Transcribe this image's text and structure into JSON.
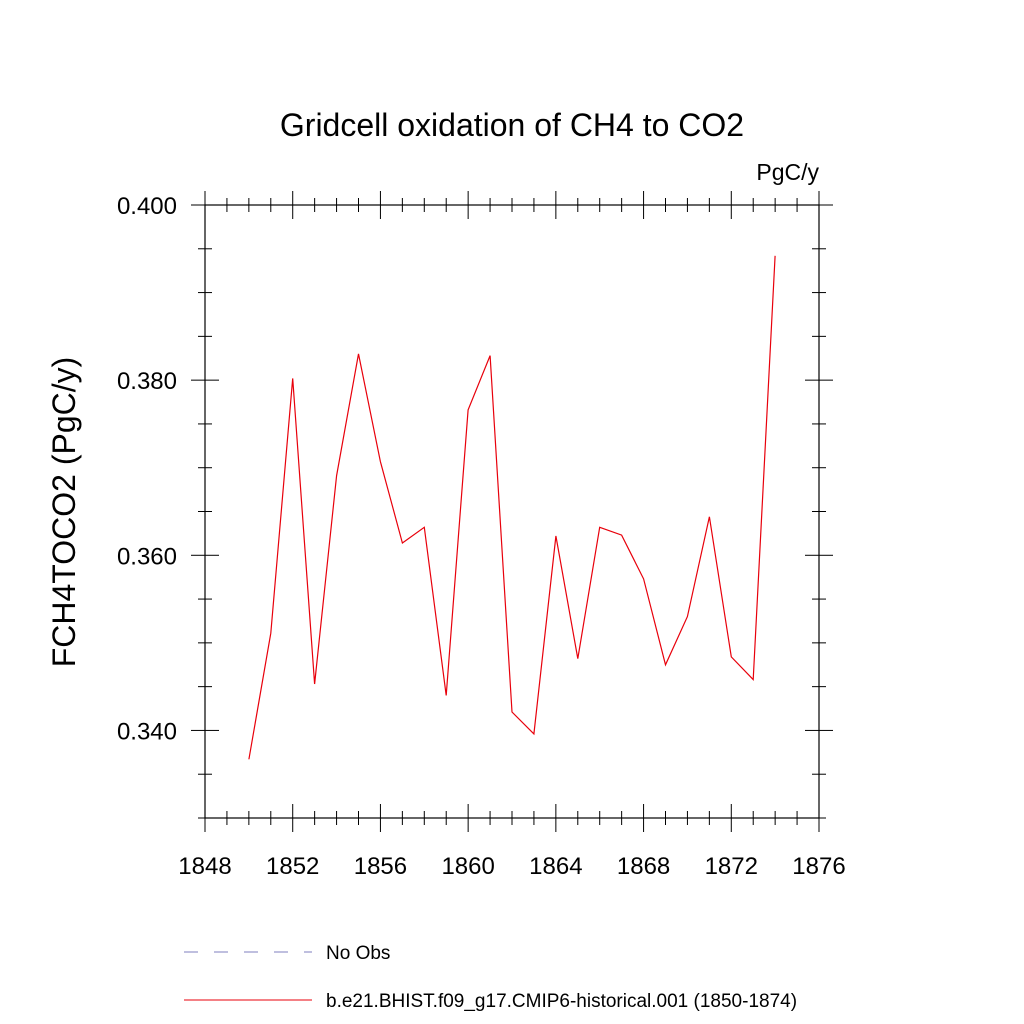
{
  "chart_data": {
    "type": "line",
    "title": "Gridcell oxidation of CH4 to CO2",
    "units": "PgC/y",
    "ylabel": "FCH4TOCO2  (PgC/y)",
    "xlabel": "",
    "xlim": [
      1848,
      1876
    ],
    "ylim": [
      0.33,
      0.4
    ],
    "x_ticks": [
      "1848",
      "1852",
      "1856",
      "1860",
      "1864",
      "1868",
      "1872",
      "1876"
    ],
    "y_ticks": [
      "0.340",
      "0.360",
      "0.380",
      "0.400"
    ],
    "grid": false,
    "legend_position": "bottom",
    "series": [
      {
        "name": "No Obs",
        "color": "#7f7fbf",
        "style": "dashed",
        "x": [],
        "values": []
      },
      {
        "name": "b.e21.BHIST.f09_g17.CMIP6-historical.001 (1850-1874)",
        "color": "#e8000b",
        "style": "solid",
        "x": [
          1850,
          1851,
          1852,
          1853,
          1854,
          1855,
          1856,
          1857,
          1858,
          1859,
          1860,
          1861,
          1862,
          1863,
          1864,
          1865,
          1866,
          1867,
          1868,
          1869,
          1870,
          1871,
          1872,
          1873,
          1874
        ],
        "values": [
          0.3367,
          0.3511,
          0.3802,
          0.3453,
          0.3691,
          0.383,
          0.3707,
          0.3614,
          0.3632,
          0.344,
          0.3766,
          0.3828,
          0.3421,
          0.3396,
          0.3622,
          0.3482,
          0.3632,
          0.3623,
          0.3573,
          0.3475,
          0.353,
          0.3644,
          0.3484,
          0.3458,
          0.3942
        ]
      }
    ]
  }
}
